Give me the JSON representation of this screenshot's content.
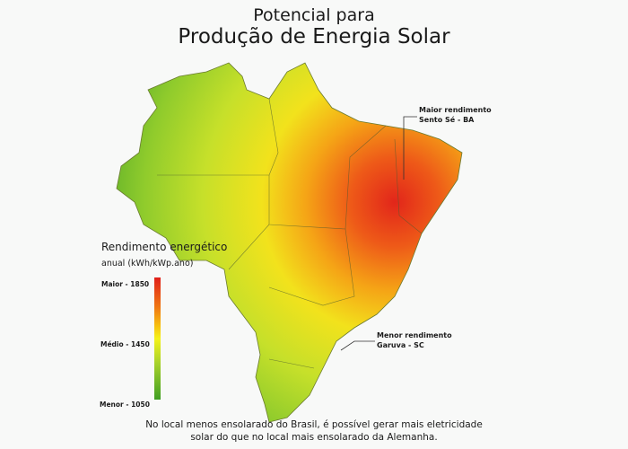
{
  "title": {
    "line1": "Potencial para",
    "line2": "Produção de Energia Solar"
  },
  "legend": {
    "title": "Rendimento energético",
    "unit": "anual (kWh/kWp.ano)",
    "max": "Maior - 1850",
    "mid": "Médio - 1450",
    "min": "Menor - 1050",
    "colors": [
      "#e0201a",
      "#f4f21a",
      "#3f9e22"
    ]
  },
  "annotations": {
    "max_label": "Maior rendimento",
    "max_place": "Sento Sé - BA",
    "min_label": "Menor rendimento",
    "min_place": "Garuva - SC"
  },
  "footer": {
    "line1": "No local menos ensolarado do Brasil, é possível gerar mais eletricidade",
    "line2": "solar do que no local mais ensolarado da Alemanha."
  }
}
